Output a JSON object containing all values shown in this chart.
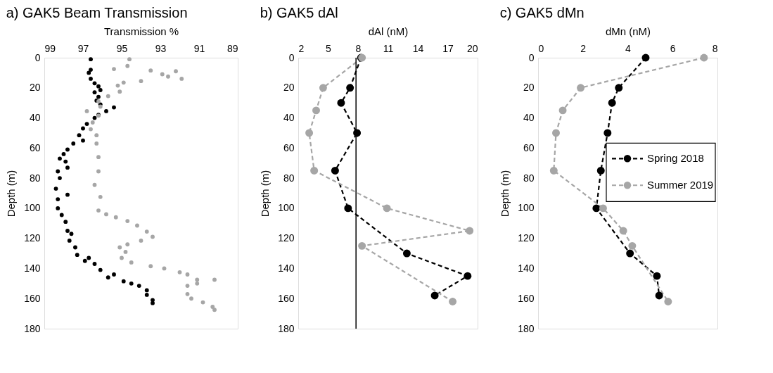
{
  "chart_data": [
    {
      "type": "scatter",
      "title": "a) GAK5 Beam Transmission",
      "xlabel": "Transmission %",
      "ylabel": "Depth (m)",
      "xlim": [
        99,
        89
      ],
      "xticks": [
        99,
        97,
        95,
        93,
        91,
        89
      ],
      "ylim": [
        180,
        0
      ],
      "yticks": [
        0,
        20,
        40,
        60,
        80,
        100,
        120,
        140,
        160,
        180
      ],
      "marker": "circle",
      "grid": false,
      "legend": false,
      "series": [
        {
          "color": "#000000",
          "x": [
            96.6,
            96.6,
            96.7,
            96.6,
            96.4,
            96.2,
            96.1,
            96.4,
            96.2,
            96.3,
            96.1,
            95.4,
            95.8,
            96.2,
            96.4,
            96.8,
            97.0,
            97.2,
            97.0,
            97.5,
            97.8,
            98.0,
            98.2,
            97.9,
            97.8,
            98.3,
            98.2,
            98.4,
            97.8,
            98.3,
            98.3,
            98.1,
            97.9,
            97.8,
            97.6,
            97.7,
            97.4,
            97.3,
            96.7,
            96.9,
            96.4,
            96.1,
            95.4,
            95.7,
            94.9,
            94.5,
            94.1,
            93.7,
            93.7,
            93.4,
            93.4
          ],
          "values": [
            1,
            8,
            10,
            14,
            17,
            19,
            21.5,
            23,
            26,
            28.5,
            31,
            33,
            35.5,
            38,
            40,
            44,
            47,
            51.5,
            55,
            57,
            61,
            64,
            67,
            69,
            73,
            75.5,
            80,
            87,
            91,
            94,
            100,
            104.5,
            109,
            115,
            117,
            121.5,
            126,
            131,
            133,
            135,
            137,
            141,
            144,
            146,
            148.5,
            150,
            151.5,
            154.5,
            157.5,
            161,
            163
          ]
        },
        {
          "color": "#a6a6a6",
          "x": [
            94.6,
            94.7,
            95.4,
            93.5,
            92.9,
            92.2,
            92.6,
            91.9,
            94.0,
            94.9,
            95.2,
            95.1,
            95.7,
            96.2,
            96.1,
            96.8,
            96.2,
            96.5,
            96.6,
            96.3,
            96.3,
            96.2,
            96.2,
            96.4,
            96.1,
            96.2,
            95.8,
            95.3,
            94.7,
            94.2,
            93.7,
            93.4,
            94.0,
            94.7,
            95.1,
            94.8,
            95.0,
            94.5,
            93.5,
            92.8,
            92.0,
            91.6,
            91.1,
            90.2,
            91.6,
            91.1,
            91.6,
            91.4,
            90.8,
            90.3,
            90.2
          ],
          "values": [
            1,
            5.5,
            7.5,
            8.5,
            11,
            9,
            12.5,
            14,
            15.5,
            16.5,
            18.5,
            22.5,
            25.5,
            29,
            32.5,
            35.5,
            38.5,
            43,
            47.5,
            51.5,
            57,
            66,
            75.5,
            84.5,
            92.5,
            101.5,
            104,
            106,
            108.5,
            111.5,
            115.5,
            119,
            121.5,
            124,
            126,
            129,
            133,
            136,
            138.5,
            140,
            142.5,
            144,
            147.5,
            147.5,
            151.5,
            150,
            157,
            160,
            162.5,
            165.5,
            167.5
          ]
        }
      ]
    },
    {
      "type": "line",
      "title": "b)    GAK5 dAl",
      "xlabel": "dAl (nM)",
      "ylabel": "Depth (m)",
      "xlim": [
        2,
        20
      ],
      "xticks": [
        2,
        5,
        8,
        11,
        14,
        17,
        20
      ],
      "ylim": [
        180,
        0
      ],
      "yticks": [
        0,
        20,
        40,
        60,
        80,
        100,
        120,
        140,
        160,
        180
      ],
      "marker": "circle",
      "line_style": "dashed",
      "grid": false,
      "legend": false,
      "ref_lines": [
        {
          "axis": "x",
          "value": 7.8,
          "color": "#000000"
        }
      ],
      "series": [
        {
          "color": "#000000",
          "x": [
            8.3,
            7.2,
            6.3,
            7.9,
            5.7,
            7.0,
            12.9,
            19.0,
            15.7
          ],
          "values": [
            0,
            20,
            30,
            50,
            75,
            100,
            130,
            145,
            158
          ]
        },
        {
          "color": "#a6a6a6",
          "x": [
            8.4,
            4.5,
            3.8,
            3.1,
            3.6,
            10.9,
            19.2,
            8.4,
            17.5
          ],
          "values": [
            0,
            20,
            35,
            50,
            75,
            100,
            115,
            125,
            162
          ]
        }
      ]
    },
    {
      "type": "line",
      "title": "c)    GAK5 dMn",
      "xlabel": "dMn (nM)",
      "ylabel": "Depth (m)",
      "xlim": [
        0,
        8
      ],
      "xticks": [
        0,
        2,
        4,
        6,
        8
      ],
      "ylim": [
        180,
        0
      ],
      "yticks": [
        0,
        20,
        40,
        60,
        80,
        100,
        120,
        140,
        160,
        180
      ],
      "marker": "circle",
      "line_style": "dashed",
      "grid": false,
      "legend": "right",
      "series": [
        {
          "name": "Spring 2018",
          "color": "#000000",
          "x": [
            4.8,
            3.6,
            3.3,
            3.1,
            2.8,
            2.6,
            4.1,
            5.3,
            5.4
          ],
          "values": [
            0,
            20,
            30,
            50,
            75,
            100,
            130,
            145,
            158
          ]
        },
        {
          "name": "Summer 2019",
          "color": "#a6a6a6",
          "x": [
            7.4,
            1.9,
            1.1,
            0.8,
            0.7,
            2.9,
            3.8,
            4.2,
            5.8
          ],
          "values": [
            0,
            20,
            35,
            50,
            75,
            100,
            115,
            125,
            162
          ]
        }
      ]
    }
  ]
}
